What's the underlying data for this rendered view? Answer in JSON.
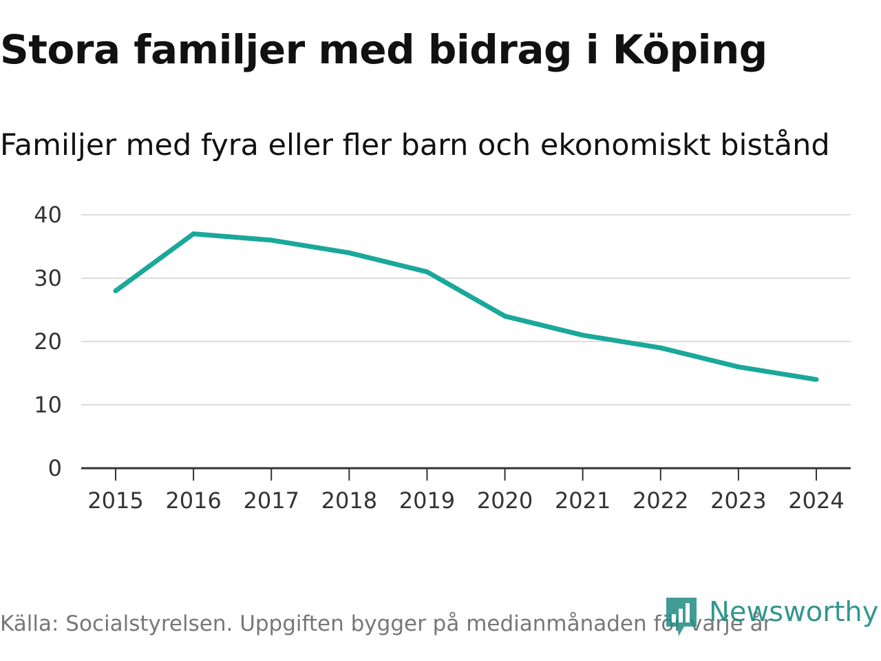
{
  "chart_data": {
    "type": "line",
    "title": "Stora familjer med bidrag i Köping",
    "subtitle": "Familjer med fyra eller fler barn och ekonomiskt bistånd",
    "x": [
      "2015",
      "2016",
      "2017",
      "2018",
      "2019",
      "2020",
      "2021",
      "2022",
      "2023",
      "2024"
    ],
    "series": [
      {
        "name": "Familjer",
        "values": [
          28,
          37,
          36,
          34,
          31,
          24,
          21,
          19,
          16,
          14
        ]
      }
    ],
    "yticks": [
      "0",
      "10",
      "20",
      "30",
      "40"
    ],
    "ylim": [
      0,
      40
    ],
    "xlabel": "",
    "ylabel": "",
    "grid": true,
    "line_color": "#1aa89a"
  },
  "footer": {
    "source": "Källa: Socialstyrelsen. Uppgiften bygger på medianmånaden för varje år"
  },
  "logo": {
    "text": "Newsworthy",
    "icon": "newsworthy-logo-icon",
    "color": "#1e8c84"
  }
}
